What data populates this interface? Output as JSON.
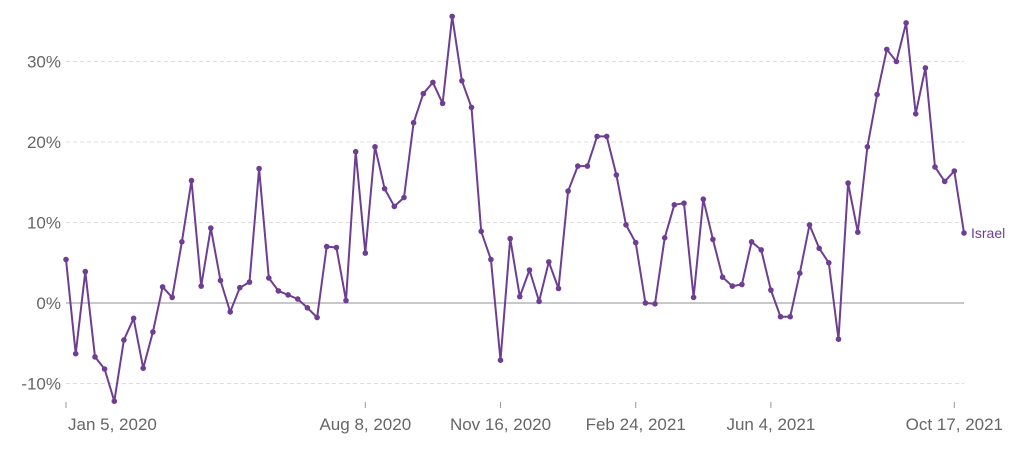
{
  "chart_data": {
    "type": "line",
    "title": "",
    "xlabel": "",
    "ylabel": "",
    "ylim": [
      -12.5,
      36
    ],
    "y_ticks": [
      {
        "value": -10,
        "label": "-10%"
      },
      {
        "value": 0,
        "label": "0%"
      },
      {
        "value": 10,
        "label": "10%"
      },
      {
        "value": 20,
        "label": "20%"
      },
      {
        "value": 30,
        "label": "30%"
      }
    ],
    "x_ticks": [
      {
        "index": 0,
        "label": "Jan 5, 2020"
      },
      {
        "index": 31,
        "label": "Aug 8, 2020"
      },
      {
        "index": 45,
        "label": "Nov 16, 2020"
      },
      {
        "index": 59,
        "label": "Feb 24, 2021"
      },
      {
        "index": 73,
        "label": "Jun 4, 2021"
      },
      {
        "index": 92,
        "label": "Oct 17, 2021"
      }
    ],
    "grid": true,
    "series": [
      {
        "name": "Israel",
        "color": "#6d3e91",
        "values": [
          5.4,
          -6.3,
          3.9,
          -6.7,
          -8.2,
          -12.2,
          -4.6,
          -1.9,
          -8.1,
          -3.6,
          2.0,
          0.7,
          7.6,
          15.2,
          2.1,
          9.3,
          2.8,
          -1.1,
          1.9,
          2.6,
          16.7,
          3.1,
          1.5,
          1.0,
          0.5,
          -0.6,
          -1.8,
          7.0,
          6.9,
          0.3,
          18.8,
          6.2,
          19.4,
          14.2,
          12.0,
          13.1,
          22.4,
          26.0,
          27.4,
          24.8,
          35.6,
          27.6,
          24.3,
          8.9,
          5.4,
          -7.1,
          8.0,
          0.8,
          4.1,
          0.2,
          5.1,
          1.8,
          13.9,
          17.0,
          17.0,
          20.7,
          20.7,
          15.9,
          9.7,
          7.5,
          0.0,
          -0.1,
          8.1,
          12.2,
          12.4,
          0.7,
          12.9,
          7.9,
          3.2,
          2.1,
          2.3,
          7.6,
          6.6,
          1.6,
          -1.7,
          -1.7,
          3.7,
          9.7,
          6.8,
          5.0,
          -4.5,
          14.9,
          8.8,
          19.4,
          25.9,
          31.5,
          30.0,
          34.8,
          23.5,
          29.2,
          16.9,
          15.1,
          16.4,
          8.7
        ]
      }
    ]
  }
}
